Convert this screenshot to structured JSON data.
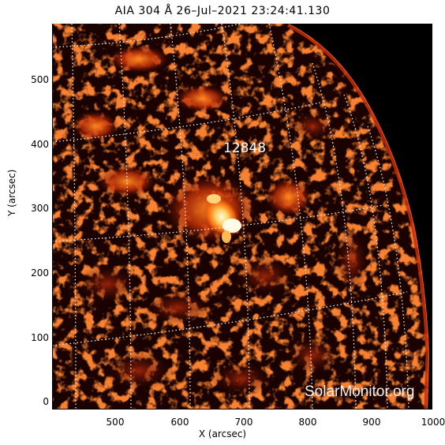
{
  "title": "AIA 304 Å 26–Jul–2021 23:24:41.130",
  "region_label": "12848",
  "watermark": "SolarMonitor.org",
  "axes": {
    "xlabel": "X (arcsec)",
    "ylabel": "Y (arcsec)",
    "xticks": [
      "500",
      "600",
      "700",
      "800",
      "900",
      "1000"
    ],
    "yticks": [
      "0",
      "100",
      "200",
      "300",
      "400",
      "500"
    ]
  },
  "colors": {
    "background": "#000000",
    "emission_bright": "#fff2a0",
    "emission_mid": "#ff7a10",
    "emission_dim": "#8a1a05",
    "grid": "#ffffff"
  }
}
